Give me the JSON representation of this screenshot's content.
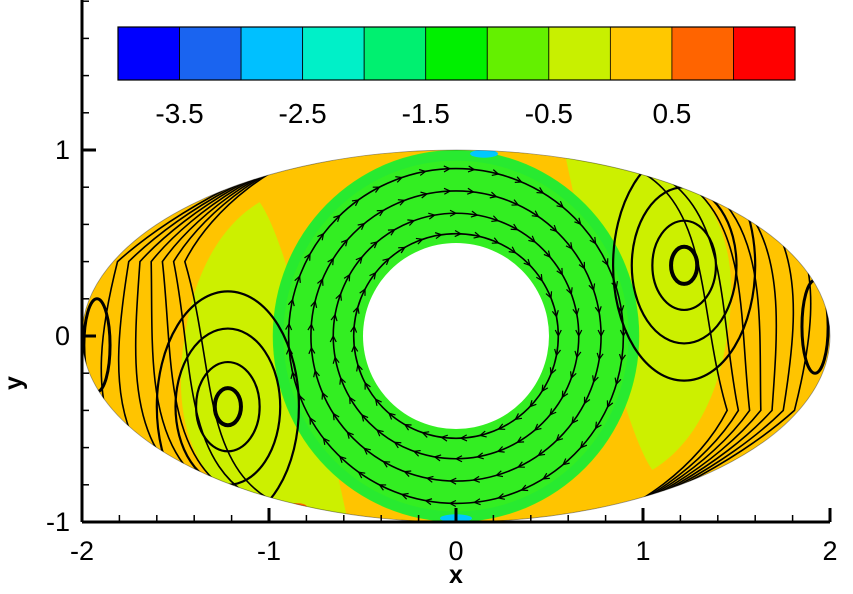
{
  "chart_data": {
    "type": "contour",
    "xlabel": "x",
    "ylabel": "y",
    "xlim": [
      -2,
      2
    ],
    "ylim": [
      -1,
      1.9
    ],
    "x_ticks": [
      -2,
      -1,
      0,
      1,
      2
    ],
    "y_ticks": [
      -1,
      0,
      1
    ],
    "domain": {
      "outer_ellipse": {
        "semi_axis_x": 2,
        "semi_axis_y": 1
      },
      "inner_circle": {
        "center": [
          0,
          0
        ],
        "radius": 0.5
      }
    },
    "colorbar": {
      "placement": "top",
      "levels": [
        -4,
        -3.5,
        -3,
        -2.5,
        -2,
        -1.5,
        -1,
        -0.5,
        0,
        0.5,
        1,
        1.5
      ],
      "colors": [
        "#0000ff",
        "#1a64f0",
        "#00c0ff",
        "#00f0c8",
        "#00f070",
        "#00f000",
        "#64f000",
        "#c8f000",
        "#ffc800",
        "#ff6400",
        "#ff0000"
      ],
      "tick_values": [
        -3.5,
        -2.5,
        -1.5,
        -0.5,
        0.5
      ],
      "tick_labels": [
        "-3.5",
        "-2.5",
        "-1.5",
        "-0.5",
        "0.5"
      ]
    },
    "regions": [
      {
        "name": "annulus",
        "level": -1.25,
        "color": "#33ee22"
      },
      {
        "name": "side-lobes",
        "level": -0.75,
        "color": "#ccf000"
      },
      {
        "name": "outer-rim",
        "level": 0.25,
        "color": "#ffc400"
      }
    ],
    "streamlines": {
      "central_circles_radius": [
        0.55,
        0.66,
        0.78,
        0.9
      ],
      "right_vortex_center": [
        1.22,
        0.38
      ],
      "left_vortex_center": [
        -1.22,
        -0.38
      ]
    }
  }
}
